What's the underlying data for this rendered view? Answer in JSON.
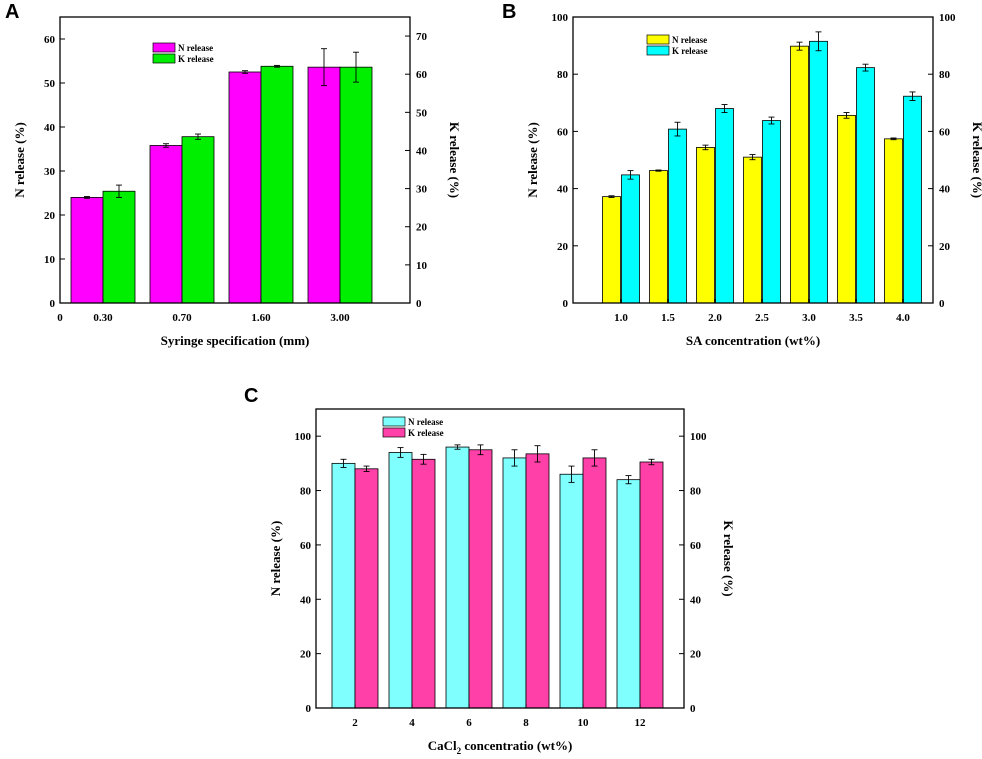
{
  "chart_data": [
    {
      "panel": "A",
      "type": "bar",
      "xlabel": "Syringe specification (mm)",
      "ylabel": "N release (%)",
      "ylabel_right": "K release (%)",
      "x_origin_label": "0",
      "categories": [
        "0.30",
        "0.70",
        "1.60",
        "3.00"
      ],
      "ylim": [
        0,
        65
      ],
      "yticks": [
        0,
        10,
        20,
        30,
        40,
        50,
        60
      ],
      "ylim_right": [
        0,
        75
      ],
      "yticks_right": [
        0,
        10,
        20,
        30,
        40,
        50,
        60,
        70
      ],
      "legend_position": "top-center",
      "series": [
        {
          "name": "N release",
          "axis": "left",
          "color": "#ff00ff",
          "values": [
            24.0,
            35.8,
            52.5,
            53.6
          ],
          "errors": [
            0.2,
            0.4,
            0.3,
            4.2
          ]
        },
        {
          "name": "K release",
          "axis": "left",
          "color": "#00ee00",
          "values": [
            25.4,
            37.8,
            53.8,
            53.6
          ],
          "errors": [
            1.4,
            0.6,
            0.2,
            3.4
          ]
        }
      ]
    },
    {
      "panel": "B",
      "type": "bar",
      "xlabel": "SA concentration (wt%)",
      "ylabel": "N release (%)",
      "ylabel_right": "K release (%)",
      "categories": [
        "1.0",
        "1.5",
        "2.0",
        "2.5",
        "3.0",
        "3.5",
        "4.0"
      ],
      "ylim": [
        0,
        100
      ],
      "yticks": [
        0,
        20,
        40,
        60,
        80,
        100
      ],
      "ylim_right": [
        0,
        100
      ],
      "yticks_right": [
        0,
        20,
        40,
        60,
        80,
        100
      ],
      "legend_position": "top-left",
      "series": [
        {
          "name": "N release",
          "axis": "left",
          "color": "#ffff00",
          "values": [
            37.2,
            46.3,
            54.4,
            51.0,
            89.8,
            65.6,
            57.4
          ],
          "errors": [
            0.3,
            0.2,
            0.8,
            0.9,
            1.4,
            1.0,
            0.3
          ]
        },
        {
          "name": "K release",
          "axis": "right",
          "color": "#00ffff",
          "values": [
            44.8,
            60.8,
            68.0,
            63.8,
            91.5,
            82.3,
            72.3
          ],
          "errors": [
            1.5,
            2.4,
            1.4,
            1.2,
            3.3,
            1.2,
            1.5
          ]
        }
      ]
    },
    {
      "panel": "C",
      "type": "bar",
      "xlabel_main": "CaCl",
      "xlabel_sub": "2",
      "xlabel_rest": " concentratio (wt%)",
      "ylabel": "N release (%)",
      "ylabel_right": "K release (%)",
      "categories": [
        "2",
        "4",
        "6",
        "8",
        "10",
        "12"
      ],
      "ylim": [
        0,
        110
      ],
      "yticks": [
        0,
        20,
        40,
        60,
        80,
        100
      ],
      "ylim_right": [
        0,
        110
      ],
      "yticks_right": [
        0,
        20,
        40,
        60,
        80,
        100
      ],
      "legend_position": "top-center",
      "series": [
        {
          "name": "N release",
          "axis": "left",
          "color": "#80ffff",
          "values": [
            90.0,
            94.0,
            96.0,
            92.0,
            86.0,
            84.0
          ],
          "errors": [
            1.5,
            1.8,
            0.8,
            3.0,
            3.0,
            1.5
          ]
        },
        {
          "name": "K release",
          "axis": "right",
          "color": "#ff40a8",
          "values": [
            88.0,
            91.5,
            95.0,
            93.5,
            92.0,
            90.5
          ],
          "errors": [
            1.0,
            1.8,
            1.8,
            3.0,
            3.0,
            1.0
          ]
        }
      ]
    }
  ]
}
